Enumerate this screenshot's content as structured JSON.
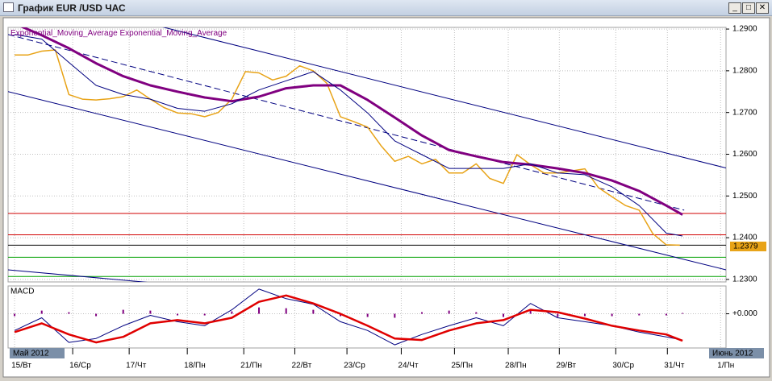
{
  "window": {
    "title": "График EUR /USD ЧАС"
  },
  "chart_data": [
    {
      "type": "line",
      "legend_label_color": "#800080",
      "xlim": [
        -0.12,
        13.1
      ],
      "ylim": [
        1.2294,
        1.2904
      ],
      "grid": true,
      "xticks": [
        {
          "value": 0,
          "label": "15/Вт"
        },
        {
          "value": 1.07,
          "label": "16/Ср"
        },
        {
          "value": 2.11,
          "label": "17/Чт"
        },
        {
          "value": 3.18,
          "label": "18/Пн"
        },
        {
          "value": 4.22,
          "label": "21/Пн"
        },
        {
          "value": 5.16,
          "label": "22/Вт"
        },
        {
          "value": 6.12,
          "label": "23/Ср"
        },
        {
          "value": 7.12,
          "label": "24/Чт"
        },
        {
          "value": 8.1,
          "label": "25/Пн"
        },
        {
          "value": 9.09,
          "label": "28/Пн"
        },
        {
          "value": 10.03,
          "label": "29/Вт"
        },
        {
          "value": 11.07,
          "label": "30/Ср"
        },
        {
          "value": 12.02,
          "label": "31/Чт"
        },
        {
          "value": 13,
          "label": "1/Пн"
        }
      ],
      "yticks": [
        {
          "value": 1.29,
          "label": "1.2900"
        },
        {
          "value": 1.28,
          "label": "1.2800"
        },
        {
          "value": 1.27,
          "label": "1.2700"
        },
        {
          "value": 1.26,
          "label": "1.2600"
        },
        {
          "value": 1.25,
          "label": "1.2500"
        },
        {
          "value": 1.24,
          "label": "1.2400"
        },
        {
          "value": 1.23,
          "label": "1.2300"
        }
      ],
      "period_labels": [
        "Май 2012",
        "Июнь 2012"
      ],
      "last_price": 1.2379,
      "last_price_color": "#e8a317",
      "series": [
        {
          "color": "#e8a317",
          "line_width": 1.5,
          "x": [
            0,
            0.25,
            0.5,
            0.75,
            1,
            1.25,
            1.5,
            1.75,
            2,
            2.25,
            2.5,
            2.75,
            3,
            3.25,
            3.5,
            3.75,
            4,
            4.25,
            4.5,
            4.75,
            5,
            5.25,
            5.5,
            5.75,
            6,
            6.25,
            6.5,
            6.75,
            7,
            7.25,
            7.5,
            7.75,
            8,
            8.25,
            8.5,
            8.75,
            9,
            9.25,
            9.5,
            9.75,
            10,
            10.25,
            10.5,
            10.75,
            11,
            11.25,
            11.5,
            11.75,
            12,
            12.25
          ],
          "values": [
            1.2838,
            1.2838,
            1.2847,
            1.285,
            1.2743,
            1.2732,
            1.273,
            1.2733,
            1.2738,
            1.2754,
            1.2732,
            1.2712,
            1.2699,
            1.2697,
            1.269,
            1.27,
            1.2732,
            1.2798,
            1.2795,
            1.2778,
            1.2787,
            1.2812,
            1.28,
            1.277,
            1.269,
            1.2678,
            1.2665,
            1.262,
            1.2583,
            1.2595,
            1.2577,
            1.2588,
            1.2555,
            1.2555,
            1.2577,
            1.2542,
            1.253,
            1.2599,
            1.2575,
            1.2555,
            1.2555,
            1.256,
            1.2565,
            1.252,
            1.2498,
            1.2477,
            1.2466,
            1.241,
            1.2383,
            1.2382
          ]
        },
        {
          "name": "Exponential_Moving_Average",
          "color": "#800080",
          "line_width": 3,
          "x": [
            0,
            0.5,
            1,
            1.5,
            2,
            2.5,
            3,
            3.5,
            4,
            4.5,
            5,
            5.5,
            6,
            6.5,
            7,
            7.5,
            8,
            8.5,
            9,
            9.5,
            10,
            10.5,
            11,
            11.5,
            12,
            12.3
          ],
          "values": [
            1.2913,
            1.2885,
            1.2854,
            1.2818,
            1.2787,
            1.2765,
            1.275,
            1.2736,
            1.2727,
            1.2738,
            1.2758,
            1.2765,
            1.2765,
            1.273,
            1.2688,
            1.2645,
            1.261,
            1.2595,
            1.2581,
            1.2575,
            1.2566,
            1.2555,
            1.2537,
            1.2512,
            1.2477,
            1.2455
          ]
        },
        {
          "name": "Exponential_Moving_Average",
          "color": "#000080",
          "line_width": 1,
          "x": [
            0,
            0.5,
            1,
            1.5,
            2,
            2.5,
            3,
            3.5,
            4,
            4.5,
            5,
            5.5,
            6,
            6.5,
            7,
            7.5,
            8,
            8.5,
            9,
            9.5,
            10,
            10.5,
            11,
            11.5,
            12,
            12.3
          ],
          "values": [
            1.2887,
            1.2876,
            1.282,
            1.2765,
            1.2743,
            1.2732,
            1.271,
            1.2703,
            1.2721,
            1.2754,
            1.2776,
            1.2798,
            1.2754,
            1.2699,
            1.2632,
            1.2599,
            1.2566,
            1.2566,
            1.2566,
            1.2577,
            1.2555,
            1.2551,
            1.2522,
            1.2477,
            1.2411,
            1.2404
          ]
        }
      ],
      "levels": [
        {
          "value": 1.2458,
          "color": "#d00000"
        },
        {
          "value": 1.2407,
          "color": "#d00000"
        },
        {
          "value": 1.2382,
          "color": "#000000"
        },
        {
          "value": 1.2353,
          "color": "#00a000"
        },
        {
          "value": 1.2307,
          "color": "#00a000"
        }
      ],
      "trendlines": [
        {
          "color": "#000080",
          "dashed": false,
          "x": [
            1.37,
            13.1
          ],
          "y": [
            1.2949,
            1.2567
          ]
        },
        {
          "color": "#000080",
          "dashed": true,
          "x": [
            -0.12,
            12.33
          ],
          "y": [
            1.2887,
            1.2466
          ]
        },
        {
          "color": "#000080",
          "dashed": false,
          "x": [
            -0.12,
            13.1
          ],
          "y": [
            1.275,
            1.2323
          ]
        },
        {
          "color": "#000080",
          "dashed": false,
          "x": [
            -0.12,
            6.57
          ],
          "y": [
            1.2323,
            1.2245
          ]
        }
      ]
    },
    {
      "type": "line",
      "title": "MACD",
      "xlim": [
        -0.12,
        13.1
      ],
      "ylim": [
        -0.0043,
        0.0035
      ],
      "grid": true,
      "yticks": [
        {
          "value": 0,
          "label": "+0.000"
        }
      ],
      "series": [
        {
          "type": "bar",
          "color": "#800080",
          "x": [
            0,
            0.5,
            1,
            1.5,
            2,
            2.5,
            3,
            3.5,
            4,
            4.5,
            5,
            5.5,
            6,
            6.5,
            7,
            7.5,
            8,
            8.5,
            9,
            9.5,
            10,
            10.5,
            11,
            11.5,
            12,
            12.3
          ],
          "values": [
            -0.0003,
            0.0004,
            0.0002,
            -0.0003,
            0.0005,
            0.0004,
            -0.0002,
            -0.0002,
            0.0003,
            0.0008,
            0.0007,
            0.0005,
            -0.0003,
            -0.0004,
            -0.0005,
            0.0002,
            0.0004,
            0.0002,
            -0.0004,
            0.0005,
            -0.0004,
            -0.0003,
            -0.0003,
            -0.0002,
            -0.0002,
            0.0001
          ]
        },
        {
          "color": "#000080",
          "line_width": 1,
          "x": [
            0,
            0.5,
            1,
            1.5,
            2,
            2.5,
            3,
            3.5,
            4,
            4.5,
            5,
            5.5,
            6,
            6.5,
            7,
            7.5,
            8,
            8.5,
            9,
            9.5,
            10,
            10.5,
            11,
            11.5,
            12,
            12.3
          ],
          "values": [
            -0.0021,
            -0.0005,
            -0.0036,
            -0.0031,
            -0.0015,
            -0.0002,
            -0.001,
            -0.0015,
            0.0005,
            0.0031,
            0.0019,
            0.0012,
            -0.001,
            -0.0021,
            -0.0039,
            -0.0026,
            -0.0015,
            -0.0005,
            -0.0015,
            0.0013,
            -0.0005,
            -0.001,
            -0.0015,
            -0.0023,
            -0.0029,
            -0.0033
          ]
        },
        {
          "color": "#e00000",
          "line_width": 2.5,
          "x": [
            0,
            0.5,
            1,
            1.5,
            2,
            2.5,
            3,
            3.5,
            4,
            4.5,
            5,
            5.5,
            6,
            6.5,
            7,
            7.5,
            8,
            8.5,
            9,
            9.5,
            10,
            10.5,
            11,
            11.5,
            12,
            12.3
          ],
          "values": [
            -0.0023,
            -0.0012,
            -0.0026,
            -0.0036,
            -0.0029,
            -0.0012,
            -0.0008,
            -0.0012,
            -0.0005,
            0.0015,
            0.0023,
            0.0013,
            0,
            -0.0015,
            -0.0031,
            -0.0033,
            -0.0021,
            -0.0012,
            -0.0008,
            0.0005,
            0.0002,
            -0.0006,
            -0.0015,
            -0.0021,
            -0.0026,
            -0.0034
          ]
        }
      ]
    }
  ]
}
